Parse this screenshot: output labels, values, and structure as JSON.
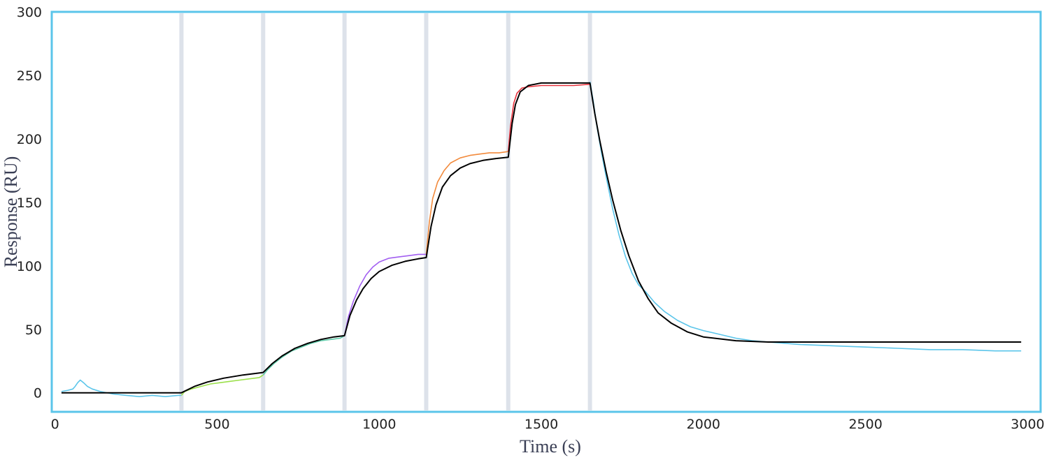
{
  "chart_data": {
    "type": "line",
    "title": "",
    "xlabel": "Time (s)",
    "ylabel": "Response (RU)",
    "xlim": [
      -10,
      3040
    ],
    "ylim": [
      -15,
      300
    ],
    "x_ticks": [
      0,
      500,
      1000,
      1500,
      2000,
      2500,
      3000
    ],
    "y_ticks": [
      0,
      50,
      100,
      150,
      200,
      250,
      300
    ],
    "grid": false,
    "legend": "none",
    "injection_markers": [
      390,
      642,
      893,
      1145,
      1398,
      1650
    ],
    "colors": {
      "frame": "#5bc5ea",
      "marker": "#dde2ea",
      "fit": "#000000"
    },
    "series": [
      {
        "color": "#5bc5ea",
        "points": [
          [
            20,
            1
          ],
          [
            40,
            2
          ],
          [
            55,
            3
          ],
          [
            62,
            5
          ],
          [
            70,
            8
          ],
          [
            78,
            10
          ],
          [
            88,
            8
          ],
          [
            100,
            5
          ],
          [
            115,
            3
          ],
          [
            140,
            1
          ],
          [
            180,
            -1
          ],
          [
            220,
            -2
          ],
          [
            260,
            -3
          ],
          [
            300,
            -2
          ],
          [
            340,
            -3
          ],
          [
            380,
            -2
          ],
          [
            390,
            -2
          ]
        ]
      },
      {
        "color": "#9be04b",
        "points": [
          [
            390,
            -2
          ],
          [
            400,
            1
          ],
          [
            420,
            3
          ],
          [
            450,
            5
          ],
          [
            480,
            7
          ],
          [
            510,
            8
          ],
          [
            540,
            9
          ],
          [
            570,
            10
          ],
          [
            600,
            11
          ],
          [
            630,
            12
          ],
          [
            642,
            14
          ]
        ]
      },
      {
        "color": "#5cc9a7",
        "points": [
          [
            642,
            14
          ],
          [
            655,
            18
          ],
          [
            675,
            23
          ],
          [
            700,
            28
          ],
          [
            730,
            33
          ],
          [
            760,
            36
          ],
          [
            790,
            39
          ],
          [
            820,
            41
          ],
          [
            850,
            42
          ],
          [
            880,
            43
          ],
          [
            893,
            45
          ]
        ]
      },
      {
        "color": "#a25ff1",
        "points": [
          [
            893,
            45
          ],
          [
            905,
            60
          ],
          [
            920,
            72
          ],
          [
            940,
            84
          ],
          [
            960,
            93
          ],
          [
            980,
            99
          ],
          [
            1000,
            103
          ],
          [
            1030,
            106
          ],
          [
            1060,
            107
          ],
          [
            1090,
            108
          ],
          [
            1120,
            109
          ],
          [
            1145,
            109
          ]
        ]
      },
      {
        "color": "#f28a3c",
        "points": [
          [
            1145,
            109
          ],
          [
            1155,
            135
          ],
          [
            1165,
            153
          ],
          [
            1180,
            166
          ],
          [
            1200,
            175
          ],
          [
            1220,
            181
          ],
          [
            1250,
            185
          ],
          [
            1280,
            187
          ],
          [
            1310,
            188
          ],
          [
            1340,
            189
          ],
          [
            1370,
            189
          ],
          [
            1398,
            190
          ]
        ]
      },
      {
        "color": "#e8343f",
        "points": [
          [
            1398,
            190
          ],
          [
            1405,
            210
          ],
          [
            1415,
            228
          ],
          [
            1425,
            236
          ],
          [
            1440,
            240
          ],
          [
            1460,
            241
          ],
          [
            1500,
            242
          ],
          [
            1550,
            242
          ],
          [
            1600,
            242
          ],
          [
            1650,
            243
          ]
        ]
      },
      {
        "color": "#5bc5ea",
        "points": [
          [
            1650,
            245
          ],
          [
            1660,
            230
          ],
          [
            1670,
            212
          ],
          [
            1685,
            190
          ],
          [
            1700,
            170
          ],
          [
            1720,
            145
          ],
          [
            1740,
            124
          ],
          [
            1760,
            107
          ],
          [
            1780,
            94
          ],
          [
            1800,
            85
          ],
          [
            1820,
            80
          ],
          [
            1850,
            71
          ],
          [
            1880,
            64
          ],
          [
            1920,
            57
          ],
          [
            1960,
            52
          ],
          [
            2000,
            49
          ],
          [
            2050,
            46
          ],
          [
            2100,
            43
          ],
          [
            2150,
            41
          ],
          [
            2200,
            40
          ],
          [
            2300,
            38
          ],
          [
            2400,
            37
          ],
          [
            2500,
            36
          ],
          [
            2600,
            35
          ],
          [
            2700,
            34
          ],
          [
            2800,
            34
          ],
          [
            2900,
            33
          ],
          [
            2980,
            33
          ]
        ]
      }
    ],
    "fit": {
      "color": "#000000",
      "points": [
        [
          20,
          0
        ],
        [
          390,
          0
        ],
        [
          430,
          5
        ],
        [
          470,
          8.5
        ],
        [
          520,
          11.5
        ],
        [
          580,
          14
        ],
        [
          642,
          16
        ],
        [
          670,
          23
        ],
        [
          700,
          29
        ],
        [
          740,
          35
        ],
        [
          780,
          39
        ],
        [
          820,
          42
        ],
        [
          860,
          44
        ],
        [
          893,
          45
        ],
        [
          910,
          61
        ],
        [
          930,
          73
        ],
        [
          950,
          82
        ],
        [
          975,
          90
        ],
        [
          1000,
          95.5
        ],
        [
          1040,
          100.5
        ],
        [
          1080,
          103.5
        ],
        [
          1120,
          105.5
        ],
        [
          1145,
          106.5
        ],
        [
          1160,
          131
        ],
        [
          1175,
          148
        ],
        [
          1195,
          162
        ],
        [
          1220,
          171
        ],
        [
          1250,
          177
        ],
        [
          1280,
          180.5
        ],
        [
          1320,
          183
        ],
        [
          1360,
          184.5
        ],
        [
          1398,
          185.5
        ],
        [
          1410,
          212
        ],
        [
          1420,
          227
        ],
        [
          1435,
          237
        ],
        [
          1460,
          242
        ],
        [
          1500,
          244
        ],
        [
          1650,
          244
        ],
        [
          1665,
          220
        ],
        [
          1680,
          199
        ],
        [
          1700,
          174
        ],
        [
          1720,
          152
        ],
        [
          1745,
          128
        ],
        [
          1770,
          108
        ],
        [
          1800,
          88
        ],
        [
          1830,
          74
        ],
        [
          1860,
          63
        ],
        [
          1900,
          55
        ],
        [
          1950,
          48
        ],
        [
          2000,
          44
        ],
        [
          2100,
          41
        ],
        [
          2200,
          40
        ],
        [
          2400,
          40
        ],
        [
          2980,
          40
        ]
      ]
    }
  }
}
